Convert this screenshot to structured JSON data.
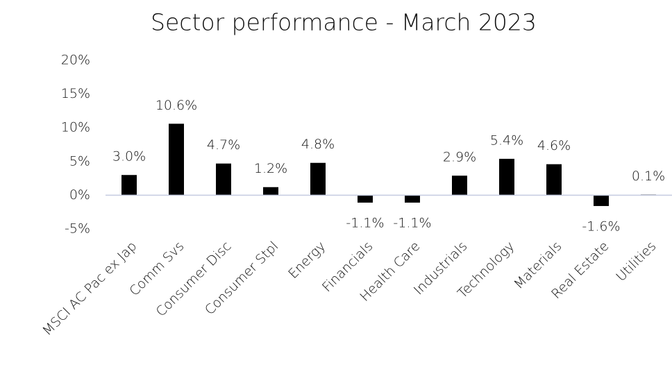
{
  "chart_data": {
    "type": "bar",
    "title": "Sector performance - March 2023",
    "categories": [
      "MSCI AC Pac ex Jap",
      "Comm Svs",
      "Consumer Disc",
      "Consumer Stpl",
      "Energy",
      "Financials",
      "Health Care",
      "Industrials",
      "Technology",
      "Materials",
      "Real Estate",
      "Utilities"
    ],
    "values": [
      3.0,
      10.6,
      4.7,
      1.2,
      4.8,
      -1.1,
      -1.1,
      2.9,
      5.4,
      4.6,
      -1.6,
      0.1
    ],
    "value_labels": [
      "3.0%",
      "10.6%",
      "4.7%",
      "1.2%",
      "4.8%",
      "-1.1%",
      "-1.1%",
      "2.9%",
      "5.4%",
      "4.6%",
      "-1.6%",
      "0.1%"
    ],
    "color": "#000000",
    "ylim": [
      -5,
      20
    ],
    "yticks": [
      {
        "value": -5,
        "label": "-5%"
      },
      {
        "value": 0,
        "label": "0%"
      },
      {
        "value": 5,
        "label": "5%"
      },
      {
        "value": 10,
        "label": "10%"
      },
      {
        "value": 15,
        "label": "15%"
      },
      {
        "value": 20,
        "label": "20%"
      }
    ],
    "grid": false
  }
}
